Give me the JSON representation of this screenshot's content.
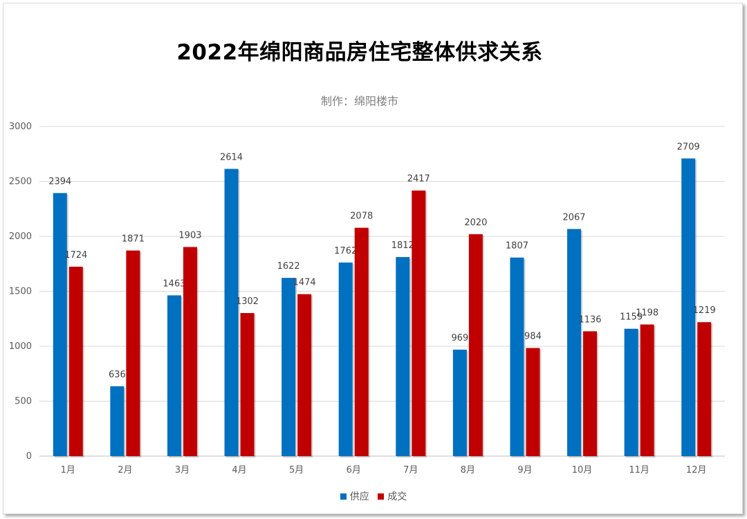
{
  "chart_data": {
    "type": "bar",
    "title": "2022年绵阳商品房住宅整体供求关系",
    "subtitle": "制作：绵阳楼市",
    "categories": [
      "1月",
      "2月",
      "3月",
      "4月",
      "5月",
      "6月",
      "7月",
      "8月",
      "9月",
      "10月",
      "11月",
      "12月"
    ],
    "series": [
      {
        "name": "供应",
        "color": "#0070c0",
        "values": [
          2394,
          636,
          1463,
          2614,
          1622,
          1762,
          1812,
          969,
          1807,
          2067,
          1159,
          2709
        ]
      },
      {
        "name": "成交",
        "color": "#c00000",
        "values": [
          1724,
          1871,
          1903,
          1302,
          1474,
          2078,
          2417,
          2020,
          984,
          1136,
          1198,
          1219
        ]
      }
    ],
    "ylim": [
      0,
      3000
    ],
    "yticks": [
      0,
      500,
      1000,
      1500,
      2000,
      2500,
      3000
    ],
    "grid": true,
    "legend_position": "bottom"
  }
}
